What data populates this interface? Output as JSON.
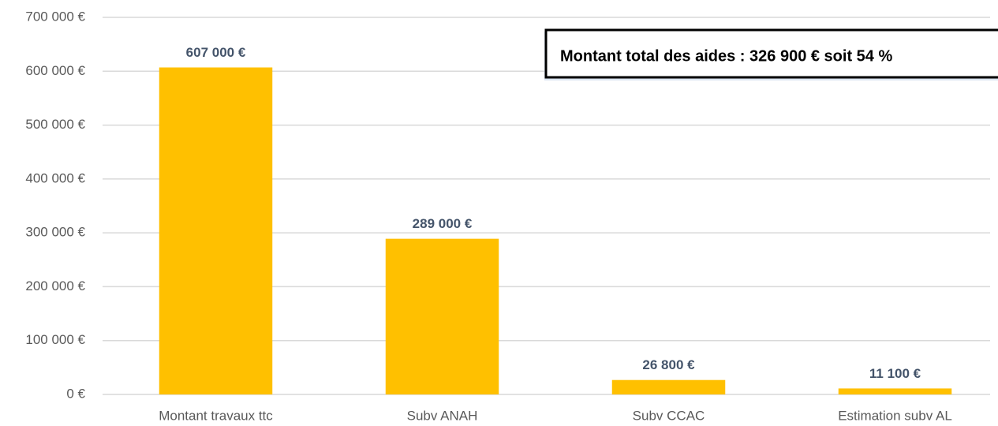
{
  "chart_data": {
    "type": "bar",
    "annotation": "Montant total des aides : 326 900 € soit 54 %",
    "categories": [
      "Montant travaux ttc",
      "Subv ANAH",
      "Subv CCAC",
      "Estimation subv AL"
    ],
    "values": [
      607000,
      289000,
      26800,
      11100
    ],
    "value_labels": [
      "607 000 €",
      "289 000 €",
      "26 800 €",
      "11 100 €"
    ],
    "color": "#ffc000",
    "ylim": [
      0,
      700000
    ],
    "yticks": [
      {
        "value": 0,
        "label": "0 €"
      },
      {
        "value": 100000,
        "label": "100 000 €"
      },
      {
        "value": 200000,
        "label": "200 000 €"
      },
      {
        "value": 300000,
        "label": "300 000 €"
      },
      {
        "value": 400000,
        "label": "400 000 €"
      },
      {
        "value": 500000,
        "label": "500 000 €"
      },
      {
        "value": 600000,
        "label": "600 000 €"
      },
      {
        "value": 700000,
        "label": "700 000 €"
      }
    ],
    "grid": true
  }
}
